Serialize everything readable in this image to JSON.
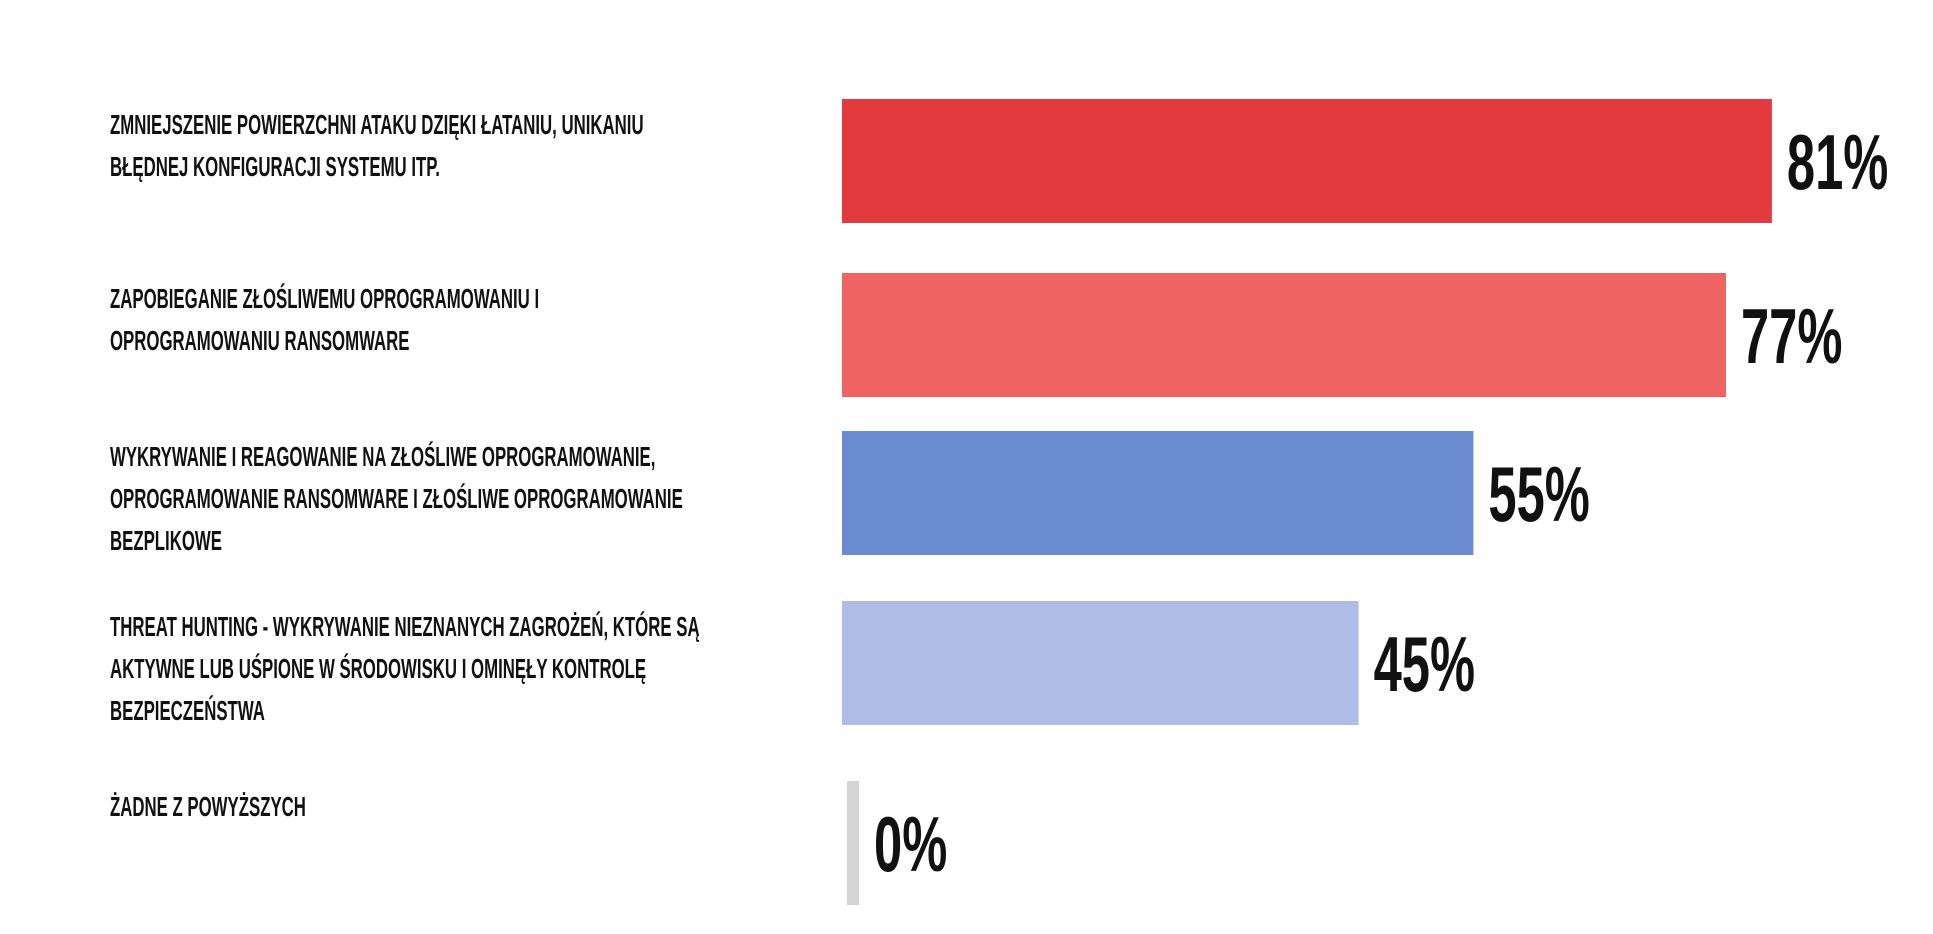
{
  "chart_data": {
    "type": "hbar",
    "categories": [
      [
        "ZMNIEJSZENIE POWIERZCHNI ATAKU DZIĘKI ŁATANIU, UNIKANIU",
        "BŁĘDNEJ KONFIGURACJI SYSTEMU ITP."
      ],
      [
        "ZAPOBIEGANIE ZŁOŚLIWEMU OPROGRAMOWANIU I",
        "OPROGRAMOWANIU RANSOMWARE"
      ],
      [
        "WYKRYWANIE I REAGOWANIE NA ZŁOŚLIWE OPROGRAMOWANIE,",
        "OPROGRAMOWANIE RANSOMWARE I ZŁOŚLIWE OPROGRAMOWANIE",
        "BEZPLIKOWE"
      ],
      [
        "THREAT HUNTING - WYKRYWANIE NIEZNANYCH ZAGROŻEŃ, KTÓRE SĄ",
        "AKTYWNE LUB UŚPIONE W ŚRODOWISKU I OMINĘŁY KONTROLĘ",
        "BEZPIECZEŃSTWA"
      ],
      [
        "ŻADNE Z POWYŻSZYCH"
      ]
    ],
    "values": [
      81,
      77,
      55,
      45,
      0
    ],
    "value_labels": [
      "81%",
      "77%",
      "55%",
      "45%",
      "0%"
    ],
    "colors": [
      "#e33b3d",
      "#ef6363",
      "#6b8bd0",
      "#aebce6",
      "#d4d4d4"
    ]
  }
}
